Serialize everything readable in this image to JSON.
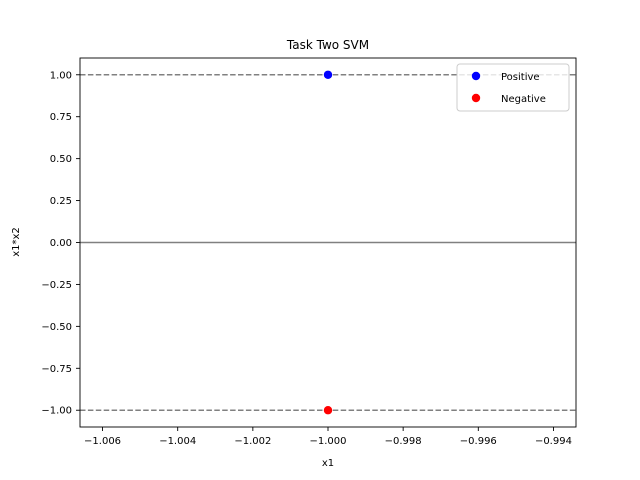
{
  "chart_data": {
    "type": "scatter",
    "title": "Task Two SVM",
    "xlabel": "x1",
    "ylabel": "x1*x2",
    "xlim": [
      -1.0066,
      -0.9934
    ],
    "ylim": [
      -1.1,
      1.1
    ],
    "xticks": [
      -1.006,
      -1.004,
      -1.002,
      -1.0,
      -0.998,
      -0.996,
      -0.994
    ],
    "xtick_labels": [
      "−1.006",
      "−1.004",
      "−1.002",
      "−1.000",
      "−0.998",
      "−0.996",
      "−0.994"
    ],
    "yticks": [
      1.0,
      0.75,
      0.5,
      0.25,
      0.0,
      -0.25,
      -0.5,
      -0.75,
      -1.0
    ],
    "ytick_labels": [
      "1.00",
      "0.75",
      "0.50",
      "0.25",
      "0.00",
      "−0.25",
      "−0.50",
      "−0.75",
      "−1.00"
    ],
    "grid": false,
    "legend_position": "top-right",
    "series": [
      {
        "name": "Positive",
        "color": "#0000ff",
        "points": [
          [
            -1.0,
            1.0
          ]
        ]
      },
      {
        "name": "Negative",
        "color": "#ff0000",
        "points": [
          [
            -1.0,
            -1.0
          ]
        ]
      }
    ],
    "lines": [
      {
        "kind": "decision-boundary",
        "y": 0.0,
        "style": "solid",
        "color": "#808080"
      },
      {
        "kind": "margin",
        "y": 1.0,
        "style": "dashed",
        "color": "#808080"
      },
      {
        "kind": "margin",
        "y": -1.0,
        "style": "dashed",
        "color": "#808080"
      }
    ]
  }
}
